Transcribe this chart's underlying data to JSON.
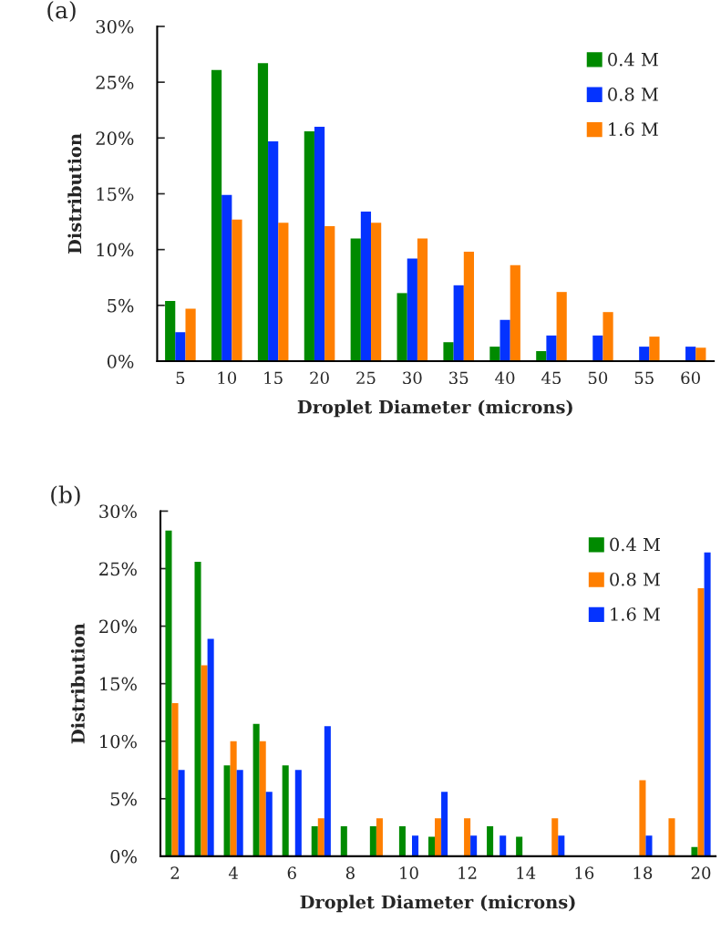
{
  "chart_data": [
    {
      "type": "bar",
      "title": "(a)",
      "xlabel": "Droplet Diameter (microns)",
      "ylabel": "Distribution",
      "categories": [
        "5",
        "10",
        "15",
        "20",
        "25",
        "30",
        "35",
        "40",
        "45",
        "50",
        "55",
        "60"
      ],
      "series": [
        {
          "name": "0.4 M",
          "color": "#008a00",
          "values": [
            5.4,
            26.1,
            26.7,
            20.6,
            11.0,
            6.1,
            1.7,
            1.3,
            0.9,
            null,
            null,
            null
          ]
        },
        {
          "name": "0.8 M",
          "color": "#0433ff",
          "values": [
            2.6,
            14.9,
            19.7,
            21.0,
            13.4,
            9.2,
            6.8,
            3.7,
            2.3,
            2.3,
            1.3,
            1.3
          ]
        },
        {
          "name": "1.6 M",
          "color": "#ff7f00",
          "values": [
            4.7,
            12.7,
            12.4,
            12.1,
            12.4,
            11.0,
            9.8,
            8.6,
            6.2,
            4.4,
            2.2,
            1.2
          ]
        }
      ],
      "ylim": [
        0,
        30
      ],
      "yticks": [
        {
          "value": 0,
          "label": "0%"
        },
        {
          "value": 5,
          "label": "5%"
        },
        {
          "value": 10,
          "label": "10%"
        },
        {
          "value": 15,
          "label": "15%"
        },
        {
          "value": 20,
          "label": "20%"
        },
        {
          "value": 25,
          "label": "25%"
        },
        {
          "value": 30,
          "label": "30%"
        }
      ],
      "legend": "top right",
      "grid": false
    },
    {
      "type": "bar",
      "title": "(b)",
      "xlabel": "Droplet Diameter (microns)",
      "ylabel": "Distribution",
      "categories": [
        "2",
        null,
        "4",
        null,
        "6",
        null,
        "8",
        null,
        "10",
        null,
        "12",
        null,
        "14",
        null,
        "16",
        null,
        "18",
        null,
        "20"
      ],
      "series": [
        {
          "name": "0.4 M",
          "color": "#008a00",
          "values": [
            28.3,
            25.6,
            7.9,
            11.5,
            7.9,
            2.6,
            2.6,
            2.6,
            2.6,
            1.7,
            null,
            2.6,
            1.7,
            null,
            null,
            null,
            null,
            null,
            0.8
          ]
        },
        {
          "name": "0.8 M",
          "color": "#ff7f00",
          "values": [
            13.3,
            16.6,
            10.0,
            10.0,
            null,
            3.3,
            null,
            3.3,
            null,
            3.3,
            3.3,
            null,
            null,
            3.3,
            null,
            null,
            6.6,
            3.3,
            23.3
          ]
        },
        {
          "name": "1.6 M",
          "color": "#0433ff",
          "values": [
            7.5,
            18.9,
            7.5,
            5.6,
            7.5,
            11.3,
            null,
            null,
            1.8,
            5.6,
            1.8,
            1.8,
            null,
            1.8,
            null,
            null,
            1.8,
            null,
            26.4
          ]
        }
      ],
      "ylim": [
        0,
        30
      ],
      "yticks": [
        {
          "value": 0,
          "label": "0%"
        },
        {
          "value": 5,
          "label": "5%"
        },
        {
          "value": 10,
          "label": "10%"
        },
        {
          "value": 15,
          "label": "15%"
        },
        {
          "value": 20,
          "label": "20%"
        },
        {
          "value": 25,
          "label": "25%"
        },
        {
          "value": 30,
          "label": "30%"
        }
      ],
      "legend": "top right",
      "grid": false
    }
  ]
}
